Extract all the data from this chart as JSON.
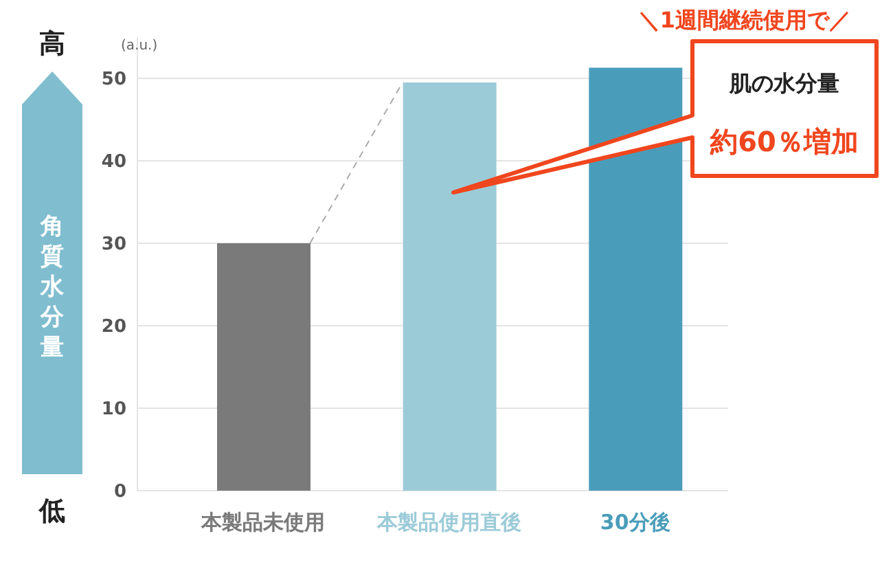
{
  "chart_data": {
    "type": "bar",
    "ylabel": "角質水分量",
    "categories": [
      "本製品未使用",
      "本製品使用直後",
      "30分後"
    ],
    "values": [
      30,
      49.5,
      51.3
    ],
    "colors": [
      "#7a7a7a",
      "#9ccbd8",
      "#4a9dba"
    ],
    "ylim": [
      0,
      55
    ],
    "yticks": [
      0,
      10,
      20,
      30,
      40,
      50
    ],
    "grid": "y",
    "annotations": [
      "(a.u.)",
      "高",
      "低",
      "＼1週間継続使用で／",
      "肌の水分量",
      "約60％増加"
    ]
  }
}
